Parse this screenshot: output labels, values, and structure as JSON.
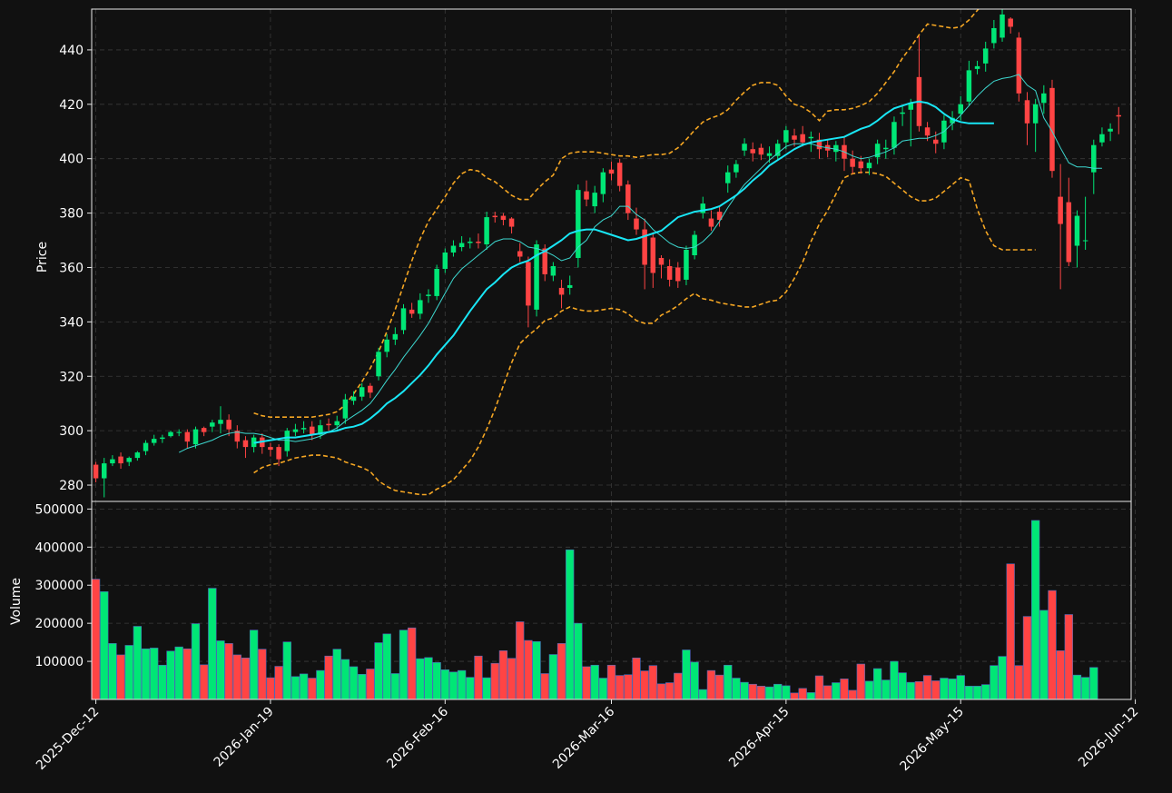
{
  "chart_data": [
    {
      "type": "candlestick",
      "panel": "price",
      "ylabel": "Price",
      "ylim": [
        274,
        455
      ],
      "yticks": [
        280,
        300,
        320,
        340,
        360,
        380,
        400,
        420,
        440
      ],
      "xlim": [
        -0.5,
        124.5
      ],
      "grid": true,
      "colors": {
        "up": "#00e676",
        "down": "#ff4444",
        "ma_fast": "#3dd8d0",
        "ma_slow": "#19e6f5",
        "bands": "#f5a623"
      },
      "close": [
        282.5,
        288.0,
        289.5,
        288.0,
        290.0,
        292.0,
        295.5,
        297.0,
        297.5,
        299.5,
        299.5,
        296.0,
        300.5,
        299.5,
        303.0,
        304.0,
        300.5,
        296.0,
        294.0,
        297.5,
        294.0,
        293.0,
        289.5,
        300.0,
        300.5,
        301.0,
        298.5,
        302.0,
        302.0,
        303.5,
        311.5,
        312.5,
        316.0,
        314.0,
        329.0,
        333.5,
        335.5,
        345.0,
        343.0,
        348.0,
        350.0,
        359.5,
        365.5,
        368.0,
        369.0,
        369.5,
        369.0,
        378.5,
        378.5,
        377.5,
        375.0,
        364.0,
        346.0,
        368.5,
        357.5,
        360.5,
        350.0,
        353.5,
        388.5,
        385.0,
        387.5,
        395.0,
        394.5,
        390.0,
        380.0,
        374.0,
        361.0,
        358.0,
        361.0,
        355.5,
        355.0,
        366.5,
        372.0,
        383.5,
        375.0,
        377.5,
        395.0,
        398.0,
        405.5,
        402.0,
        401.5,
        402.0,
        405.5,
        410.5,
        407.0,
        406.0,
        408.0,
        403.5,
        403.0,
        405.0,
        400.0,
        397.0,
        396.5,
        398.5,
        405.5,
        404.0,
        413.5,
        417.0,
        420.5,
        412.0,
        408.5,
        405.5,
        414.0,
        415.0,
        420.0,
        432.5,
        434.0,
        440.5,
        448.0,
        453.0,
        448.5,
        424.0,
        413.0,
        420.0,
        424.0,
        395.5,
        376.0,
        362.0,
        379.0,
        370.0,
        405.0,
        409.0,
        411.0,
        415.5
      ],
      "open": [
        287.5,
        282.5,
        288.0,
        290.5,
        288.5,
        290.0,
        292.5,
        295.5,
        297.0,
        298.0,
        299.5,
        299.5,
        295.0,
        301.0,
        301.5,
        302.5,
        304.0,
        300.0,
        296.5,
        294.0,
        297.5,
        294.0,
        294.0,
        292.5,
        299.5,
        300.5,
        301.5,
        298.5,
        302.5,
        302.0,
        304.5,
        311.0,
        312.5,
        316.5,
        320.0,
        329.0,
        333.5,
        337.0,
        344.5,
        343.0,
        349.5,
        349.5,
        359.5,
        365.5,
        367.5,
        369.0,
        369.5,
        368.5,
        379.0,
        379.0,
        378.0,
        366.0,
        362.0,
        344.5,
        367.0,
        357.0,
        352.5,
        352.5,
        363.5,
        388.0,
        382.5,
        387.0,
        396.0,
        398.5,
        390.5,
        378.0,
        374.0,
        371.0,
        363.5,
        360.5,
        360.0,
        355.5,
        364.5,
        380.0,
        378.0,
        380.5,
        391.0,
        395.0,
        403.0,
        403.5,
        404.0,
        401.0,
        401.0,
        406.0,
        408.5,
        409.0,
        407.5,
        407.0,
        405.0,
        402.5,
        405.0,
        400.0,
        399.0,
        396.5,
        400.5,
        403.5,
        404.0,
        416.5,
        418.0,
        430.0,
        411.5,
        407.0,
        406.0,
        413.0,
        416.5,
        421.0,
        433.0,
        435.0,
        442.5,
        444.5,
        451.5,
        444.5,
        421.5,
        413.0,
        420.5,
        426.0,
        386.0,
        384.0,
        368.0,
        370.0,
        395.0,
        406.0,
        410.0,
        416.0
      ],
      "high": [
        288.5,
        290.0,
        291.0,
        292.0,
        290.5,
        292.5,
        296.5,
        298.5,
        298.5,
        300.0,
        300.5,
        300.5,
        301.5,
        301.5,
        304.0,
        309.0,
        306.0,
        302.0,
        298.0,
        298.5,
        299.0,
        295.5,
        295.0,
        301.0,
        302.5,
        303.5,
        303.5,
        304.0,
        304.5,
        305.5,
        313.5,
        314.5,
        317.5,
        317.5,
        330.5,
        335.5,
        338.0,
        346.5,
        347.0,
        350.5,
        352.0,
        361.0,
        367.0,
        370.0,
        371.5,
        371.0,
        372.5,
        380.5,
        380.5,
        380.0,
        378.5,
        369.0,
        364.0,
        370.0,
        368.5,
        362.0,
        355.5,
        357.0,
        390.5,
        392.0,
        390.0,
        396.5,
        399.0,
        400.0,
        392.0,
        382.0,
        378.0,
        373.0,
        364.5,
        363.0,
        362.0,
        368.0,
        373.5,
        386.0,
        381.0,
        382.5,
        397.5,
        399.5,
        407.5,
        406.0,
        405.5,
        404.5,
        407.0,
        412.0,
        411.0,
        412.0,
        410.0,
        409.5,
        407.0,
        406.5,
        408.0,
        403.0,
        401.0,
        400.0,
        407.0,
        407.0,
        415.5,
        419.5,
        422.0,
        445.0,
        413.5,
        410.0,
        416.0,
        417.5,
        423.0,
        436.0,
        436.0,
        443.0,
        451.0,
        456.0,
        452.0,
        446.5,
        424.5,
        422.0,
        427.0,
        429.0,
        398.0,
        393.0,
        381.0,
        386.0,
        407.0,
        411.5,
        413.0,
        419.0
      ],
      "low": [
        281.0,
        275.5,
        287.0,
        286.0,
        287.0,
        289.0,
        291.0,
        294.5,
        295.5,
        297.5,
        298.0,
        293.5,
        293.5,
        298.0,
        299.5,
        299.0,
        298.0,
        293.5,
        290.0,
        292.0,
        291.5,
        290.5,
        287.0,
        290.5,
        298.0,
        299.0,
        296.5,
        297.0,
        300.0,
        300.5,
        302.5,
        309.5,
        311.0,
        312.0,
        318.5,
        327.0,
        331.5,
        335.5,
        341.5,
        341.0,
        347.0,
        348.0,
        358.0,
        364.0,
        366.0,
        367.0,
        367.0,
        366.5,
        376.5,
        375.5,
        372.5,
        362.0,
        338.0,
        342.0,
        355.0,
        355.0,
        345.0,
        350.0,
        360.0,
        382.5,
        380.0,
        384.0,
        392.0,
        388.0,
        377.5,
        372.0,
        352.0,
        352.5,
        356.0,
        353.0,
        352.5,
        353.5,
        363.0,
        378.0,
        373.5,
        375.0,
        387.5,
        393.0,
        401.0,
        399.0,
        399.5,
        398.5,
        399.5,
        403.5,
        404.5,
        404.5,
        402.5,
        400.0,
        400.5,
        399.0,
        395.5,
        394.5,
        394.5,
        394.0,
        398.0,
        400.0,
        401.5,
        412.0,
        404.5,
        410.0,
        406.5,
        402.0,
        403.5,
        410.5,
        414.0,
        419.5,
        431.0,
        432.0,
        440.5,
        443.0,
        446.0,
        421.0,
        405.0,
        402.5,
        416.5,
        393.0,
        352.0,
        360.5,
        360.0,
        366.5,
        387.0,
        404.5,
        406.5,
        409.0
      ],
      "ma_fast": [
        null,
        null,
        null,
        null,
        null,
        null,
        null,
        null,
        null,
        null,
        292.0,
        293.5,
        294.5,
        295.5,
        296.5,
        298.0,
        299.0,
        299.5,
        299.0,
        299.0,
        298.5,
        297.5,
        296.5,
        296.5,
        296.0,
        296.5,
        297.0,
        298.0,
        299.5,
        301.0,
        303.5,
        305.5,
        307.5,
        310.0,
        314.0,
        318.5,
        322.5,
        327.0,
        331.0,
        335.0,
        339.5,
        345.0,
        350.5,
        356.0,
        359.5,
        362.0,
        364.5,
        367.0,
        369.5,
        370.5,
        370.5,
        369.5,
        367.5,
        367.0,
        366.0,
        364.5,
        362.5,
        363.5,
        367.5,
        370.0,
        375.0,
        377.5,
        379.0,
        382.5,
        382.5,
        379.5,
        377.5,
        374.0,
        371.5,
        369.0,
        367.5,
        367.0,
        367.5,
        369.5,
        372.5,
        377.0,
        382.0,
        386.5,
        390.5,
        393.5,
        396.5,
        399.5,
        402.0,
        404.5,
        405.5,
        405.5,
        405.5,
        404.5,
        404.0,
        403.5,
        402.5,
        401.0,
        400.0,
        400.5,
        401.5,
        402.5,
        404.0,
        406.5,
        407.0,
        407.5,
        407.5,
        408.5,
        410.0,
        413.0,
        416.0,
        419.5,
        423.0,
        426.0,
        428.5,
        429.5,
        430.0,
        431.0,
        427.0,
        425.0,
        415.0,
        410.0,
        404.0,
        398.5,
        397.0,
        397.0,
        396.5,
        396.5
      ],
      "ma_slow": [
        null,
        null,
        null,
        null,
        null,
        null,
        null,
        null,
        null,
        null,
        null,
        null,
        null,
        null,
        null,
        null,
        null,
        null,
        null,
        295.5,
        296.0,
        296.5,
        297.0,
        297.5,
        297.5,
        298.0,
        298.5,
        299.0,
        299.5,
        300.0,
        301.0,
        301.5,
        302.5,
        304.5,
        307.0,
        310.0,
        312.0,
        314.5,
        317.5,
        320.5,
        324.0,
        328.0,
        331.5,
        335.0,
        339.5,
        344.0,
        348.0,
        352.0,
        354.5,
        357.5,
        360.0,
        361.5,
        362.5,
        364.5,
        366.0,
        368.0,
        370.0,
        372.5,
        373.5,
        374.0,
        374.0,
        373.0,
        372.0,
        371.0,
        370.0,
        370.5,
        371.5,
        372.5,
        373.5,
        376.0,
        378.5,
        379.5,
        380.5,
        381.0,
        381.5,
        382.5,
        384.5,
        386.5,
        389.0,
        392.0,
        394.5,
        397.5,
        399.5,
        401.5,
        403.5,
        405.0,
        406.0,
        406.5,
        407.0,
        407.5,
        408.0,
        409.5,
        411.0,
        412.0,
        414.0,
        416.5,
        418.5,
        419.5,
        420.5,
        421.0,
        420.5,
        419.0,
        416.5,
        414.5,
        413.5,
        413.0,
        413.0,
        413.0,
        413.0
      ],
      "upper_band": [
        null,
        null,
        null,
        null,
        null,
        null,
        null,
        null,
        null,
        null,
        null,
        null,
        null,
        null,
        null,
        null,
        null,
        null,
        null,
        306.5,
        305.5,
        305.0,
        305.0,
        305.0,
        305.0,
        305.0,
        305.0,
        305.5,
        306.0,
        307.0,
        309.5,
        313.5,
        318.0,
        323.0,
        329.0,
        336.5,
        344.5,
        353.5,
        362.5,
        370.5,
        377.0,
        381.5,
        386.0,
        391.0,
        394.5,
        396.0,
        395.5,
        393.0,
        391.5,
        389.0,
        386.5,
        385.0,
        385.0,
        388.5,
        391.5,
        394.0,
        400.0,
        402.0,
        402.5,
        402.5,
        402.5,
        402.0,
        401.5,
        401.0,
        401.0,
        400.5,
        401.0,
        401.5,
        401.5,
        402.0,
        404.0,
        407.0,
        410.5,
        413.5,
        415.0,
        416.0,
        418.0,
        421.5,
        424.5,
        427.0,
        428.0,
        428.0,
        427.0,
        423.0,
        420.0,
        419.0,
        417.0,
        414.0,
        417.5,
        418.0,
        418.0,
        418.5,
        419.5,
        421.0,
        424.0,
        428.0,
        432.0,
        437.0,
        441.0,
        445.5,
        449.5,
        449.0,
        448.5,
        448.0,
        448.5,
        451.0,
        454.5,
        458.0
      ],
      "lower_band": [
        null,
        null,
        null,
        null,
        null,
        null,
        null,
        null,
        null,
        null,
        null,
        null,
        null,
        null,
        null,
        null,
        null,
        null,
        null,
        284.5,
        286.5,
        287.5,
        288.0,
        289.0,
        290.0,
        290.5,
        291.0,
        291.0,
        290.5,
        290.0,
        288.5,
        287.5,
        286.5,
        285.0,
        281.5,
        279.5,
        278.0,
        277.5,
        277.0,
        276.5,
        276.5,
        278.5,
        280.0,
        282.0,
        285.5,
        289.0,
        294.0,
        300.5,
        308.0,
        316.5,
        325.0,
        332.0,
        335.0,
        337.5,
        340.5,
        341.5,
        344.0,
        345.5,
        344.5,
        344.0,
        344.0,
        344.5,
        345.0,
        344.5,
        343.0,
        340.5,
        339.5,
        339.5,
        342.5,
        344.0,
        346.0,
        348.5,
        350.5,
        348.5,
        348.0,
        347.0,
        346.5,
        346.0,
        345.5,
        345.5,
        346.5,
        347.5,
        348.0,
        351.0,
        356.0,
        362.0,
        369.5,
        376.0,
        381.0,
        387.0,
        393.0,
        394.5,
        395.0,
        395.0,
        394.5,
        393.5,
        391.0,
        388.5,
        386.0,
        384.5,
        384.5,
        385.5,
        388.0,
        390.5,
        393.0,
        392.0,
        381.5,
        373.5,
        368.0,
        366.5,
        366.5,
        366.5,
        366.5,
        366.5
      ]
    },
    {
      "type": "bar",
      "panel": "volume",
      "ylabel": "Volume",
      "ylim": [
        0,
        520000
      ],
      "yticks": [
        100000,
        200000,
        300000,
        400000,
        500000
      ],
      "xlim": [
        -0.5,
        124.5
      ],
      "grid": true,
      "xtick_labels": [
        {
          "index": 0,
          "label": "2025-Dec-12"
        },
        {
          "index": 21,
          "label": "2026-Jan-19"
        },
        {
          "index": 42,
          "label": "2026-Feb-16"
        },
        {
          "index": 62,
          "label": "2026-Mar-16"
        },
        {
          "index": 83,
          "label": "2026-Apr-15"
        },
        {
          "index": 104,
          "label": "2026-May-15"
        },
        {
          "index": 125,
          "label": "2026-Jun-12"
        }
      ],
      "values": [
        316000,
        283000,
        147000,
        117000,
        142000,
        192000,
        133000,
        135000,
        90000,
        127000,
        138000,
        133000,
        199000,
        91000,
        292000,
        154000,
        147000,
        117000,
        109000,
        182000,
        132000,
        57000,
        87000,
        151000,
        60000,
        67000,
        56000,
        76000,
        114000,
        132000,
        105000,
        86000,
        66000,
        80000,
        149000,
        172000,
        68000,
        182000,
        188000,
        107000,
        110000,
        97000,
        78000,
        72000,
        76000,
        58000,
        114000,
        57000,
        95000,
        128000,
        108000,
        204000,
        155000,
        152000,
        68000,
        118000,
        147000,
        393000,
        200000,
        86000,
        90000,
        56000,
        90000,
        63000,
        65000,
        109000,
        75000,
        89000,
        41000,
        44000,
        69000,
        130000,
        98000,
        26000,
        76000,
        64000,
        90000,
        56000,
        45000,
        40000,
        35000,
        33000,
        40000,
        36000,
        17000,
        29000,
        18000,
        62000,
        36000,
        44000,
        54000,
        24000,
        93000,
        48000,
        81000,
        51000,
        100000,
        70000,
        45000,
        47000,
        63000,
        49000,
        56000,
        54000,
        63000,
        35000,
        35000,
        39000,
        89000,
        113000,
        356000,
        89000,
        218000,
        470000,
        234000,
        286000,
        128000,
        223000,
        64000,
        58000,
        84000
      ]
    }
  ]
}
